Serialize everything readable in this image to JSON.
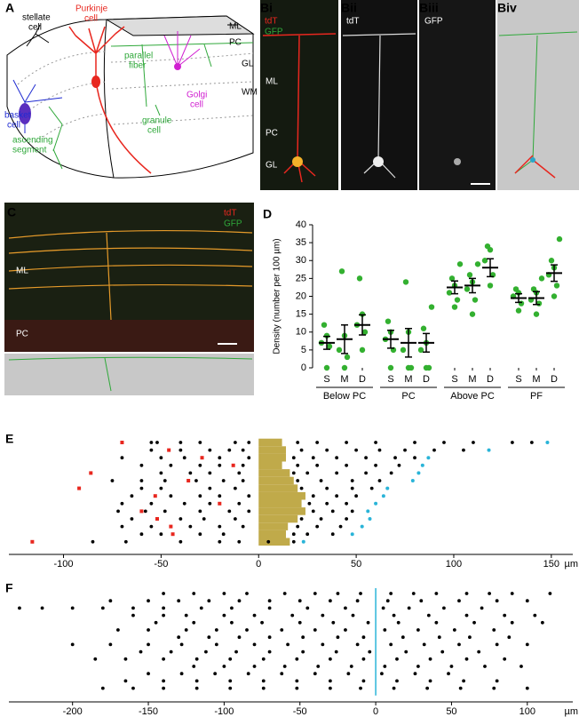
{
  "panel_labels": {
    "A": "A",
    "Bi": "Bi",
    "Bii": "Bii",
    "Biii": "Biii",
    "Biv": "Biv",
    "C": "C",
    "D": "D",
    "E": "E",
    "F": "F"
  },
  "panel_a": {
    "stellate": [
      "stellate",
      "cell"
    ],
    "purkinje": [
      "Purkinje",
      "cell"
    ],
    "layers": [
      "ML",
      "PC",
      "GL",
      "WM"
    ],
    "parallel": [
      "parallel",
      "fiber"
    ],
    "granule": [
      "granule",
      "cell"
    ],
    "golgi": [
      "Golgi",
      "cell"
    ],
    "basket": [
      "basket",
      "cell"
    ],
    "ascending": [
      "ascending",
      "segment"
    ]
  },
  "panel_b": {
    "bi_channels": [
      "tdT",
      "GFP"
    ],
    "bii_channel": "tdT",
    "biii_channel": "GFP",
    "layers": [
      "ML",
      "PC",
      "GL"
    ]
  },
  "panel_c": {
    "channels": [
      "tdT",
      "GFP"
    ],
    "layers": [
      "ML",
      "PC"
    ]
  },
  "chart_data": [
    {
      "type": "dot_plot",
      "ylabel": "Density (number per 100 µm)",
      "ylim": [
        0,
        40
      ],
      "yticks": [
        0,
        5,
        10,
        15,
        20,
        25,
        30,
        35,
        40
      ],
      "point_color": "#33b030",
      "groups": [
        {
          "name": "Below PC",
          "categories": [
            "S",
            "M",
            "D"
          ],
          "points": [
            [
              0,
              6,
              7,
              9,
              12
            ],
            [
              0,
              3,
              5,
              9,
              27
            ],
            [
              5,
              10,
              12,
              15,
              25
            ]
          ],
          "means": [
            7,
            8,
            12
          ],
          "errors": [
            1.8,
            4,
            2.8
          ]
        },
        {
          "name": "PC",
          "categories": [
            "S",
            "M",
            "D"
          ],
          "points": [
            [
              0,
              5,
              8,
              10,
              13
            ],
            [
              0,
              0,
              5,
              10,
              24
            ],
            [
              0,
              0,
              5,
              7,
              11,
              17
            ]
          ],
          "means": [
            8,
            7,
            7
          ],
          "errors": [
            2.5,
            4,
            2.6
          ]
        },
        {
          "name": "Above PC",
          "categories": [
            "S",
            "M",
            "D"
          ],
          "points": [
            [
              17,
              19,
              21,
              23,
              25,
              29
            ],
            [
              15,
              19,
              22,
              24,
              26,
              29
            ],
            [
              23,
              26,
              30,
              33,
              34
            ]
          ],
          "means": [
            22.5,
            23,
            28
          ],
          "errors": [
            1.8,
            2,
            2.5
          ]
        },
        {
          "name": "PF",
          "categories": [
            "S",
            "M",
            "D"
          ],
          "points": [
            [
              16,
              18,
              20,
              21,
              22
            ],
            [
              15,
              18,
              19,
              21,
              22,
              25
            ],
            [
              20,
              23,
              26,
              28,
              30,
              36
            ]
          ],
          "means": [
            19.5,
            19.5,
            26.5
          ],
          "errors": [
            1.2,
            1.8,
            2.3
          ]
        }
      ]
    },
    {
      "type": "raster",
      "xlim": [
        -128,
        161
      ],
      "xticks": [
        -100,
        -50,
        0,
        50,
        100,
        150
      ],
      "unit": "µm",
      "dot_color": "#000",
      "start_color": "#e8271f",
      "end_color": "#2ab4d8",
      "band_color": "#c0aa4a",
      "rows": [
        {
          "start": -70,
          "end": 148,
          "band": 12,
          "dots": [
            -55,
            -52,
            -40,
            -30,
            -12,
            -5,
            20,
            30,
            45,
            60,
            80,
            95,
            110,
            130,
            140
          ]
        },
        {
          "start": -46,
          "end": 118,
          "band": 14,
          "dots": [
            -55,
            -40,
            -25,
            -15,
            -8,
            22,
            35,
            50,
            62,
            75,
            90,
            105
          ]
        },
        {
          "start": -29,
          "end": 87,
          "band": 14,
          "dots": [
            -70,
            -50,
            -38,
            -20,
            -5,
            18,
            28,
            40,
            55,
            70,
            80
          ]
        },
        {
          "start": -13,
          "end": 84,
          "band": 12,
          "dots": [
            -60,
            -45,
            -30,
            -20,
            -8,
            20,
            30,
            45,
            60,
            72
          ]
        },
        {
          "start": -86,
          "end": 82,
          "band": 16,
          "dots": [
            -50,
            -35,
            -25,
            -10,
            18,
            25,
            40,
            55,
            68
          ]
        },
        {
          "start": -36,
          "end": 79,
          "band": 18,
          "dots": [
            -75,
            -60,
            -48,
            -32,
            -18,
            -8,
            20,
            32,
            48,
            62
          ]
        },
        {
          "start": -92,
          "end": 66,
          "band": 20,
          "dots": [
            -60,
            -50,
            -25,
            -12,
            22,
            35,
            48,
            58
          ]
        },
        {
          "start": -53,
          "end": 64,
          "band": 24,
          "dots": [
            -65,
            -45,
            -30,
            -20,
            -5,
            28,
            40,
            50
          ]
        },
        {
          "start": -20,
          "end": 60,
          "band": 22,
          "dots": [
            -70,
            -55,
            -38,
            -25,
            -10,
            26,
            35,
            45
          ]
        },
        {
          "start": -60,
          "end": 56,
          "band": 24,
          "dots": [
            -72,
            -58,
            -48,
            -30,
            -15,
            -5,
            28,
            38,
            48
          ]
        },
        {
          "start": -52,
          "end": 57,
          "band": 20,
          "dots": [
            -65,
            -40,
            -28,
            -12,
            22,
            32,
            45
          ]
        },
        {
          "start": -45,
          "end": 53,
          "band": 15,
          "dots": [
            -70,
            -55,
            -35,
            -20,
            -8,
            20,
            30,
            42
          ]
        },
        {
          "start": -44,
          "end": 48,
          "band": 14,
          "dots": [
            -60,
            -50,
            -30,
            -18,
            18,
            25,
            38
          ]
        },
        {
          "start": -116,
          "end": 23,
          "band": 16,
          "dots": [
            -85,
            -68,
            -40,
            -20,
            -10,
            5,
            18
          ]
        }
      ]
    },
    {
      "type": "raster",
      "xlim": [
        -242,
        130
      ],
      "xticks": [
        -200,
        -150,
        -100,
        -50,
        0,
        50,
        100
      ],
      "unit": "µm",
      "dot_color": "#000",
      "zero_line_color": "#2ab4d8",
      "rows": [
        {
          "dots": [
            -140,
            -120,
            -100,
            -85,
            -60,
            -40,
            -25,
            -10,
            10,
            25,
            40,
            60,
            75,
            90,
            115
          ]
        },
        {
          "dots": [
            -175,
            -150,
            -130,
            -110,
            -90,
            -70,
            -50,
            -30,
            -12,
            8,
            30,
            55,
            80,
            100
          ]
        },
        {
          "dots": [
            -235,
            -220,
            -200,
            -180,
            -160,
            -140,
            -115,
            -95,
            -70,
            -45,
            -20,
            5,
            22,
            45,
            70
          ]
        },
        {
          "dots": [
            -160,
            -140,
            -125,
            -100,
            -80,
            -55,
            -35,
            -15,
            12,
            35,
            60,
            85,
            105
          ]
        },
        {
          "dots": [
            -145,
            -120,
            -95,
            -75,
            -50,
            -28,
            -5,
            15,
            40,
            65,
            90,
            110
          ]
        },
        {
          "dots": [
            -170,
            -150,
            -125,
            -105,
            -85,
            -62,
            -40,
            -20,
            6,
            28,
            52,
            78
          ]
        },
        {
          "dots": [
            -130,
            -110,
            -90,
            -70,
            -48,
            -25,
            -8,
            18,
            42,
            62,
            88
          ]
        },
        {
          "dots": [
            -200,
            -175,
            -150,
            -128,
            -105,
            -80,
            -58,
            -35,
            -12,
            10,
            32,
            55,
            80,
            100
          ]
        },
        {
          "dots": [
            -155,
            -135,
            -112,
            -92,
            -70,
            -48,
            -26,
            -4,
            20,
            44,
            68
          ]
        },
        {
          "dots": [
            -185,
            -165,
            -140,
            -118,
            -96,
            -74,
            -52,
            -30,
            -8,
            14,
            36,
            60,
            85
          ]
        },
        {
          "dots": [
            -120,
            -100,
            -80,
            -60,
            -38,
            -16,
            6,
            28,
            50,
            72,
            96
          ]
        },
        {
          "dots": [
            -150,
            -128,
            -106,
            -84,
            -62,
            -40,
            -18,
            4,
            26,
            48
          ]
        },
        {
          "dots": [
            -165,
            -140,
            -118,
            -96,
            -74,
            -52,
            -30,
            -8,
            14,
            36,
            58,
            80
          ]
        },
        {
          "dots": [
            -180,
            -160,
            -140,
            -118,
            -96,
            -74,
            -52,
            -30,
            -10,
            12,
            34,
            56,
            78,
            100
          ]
        }
      ]
    }
  ]
}
